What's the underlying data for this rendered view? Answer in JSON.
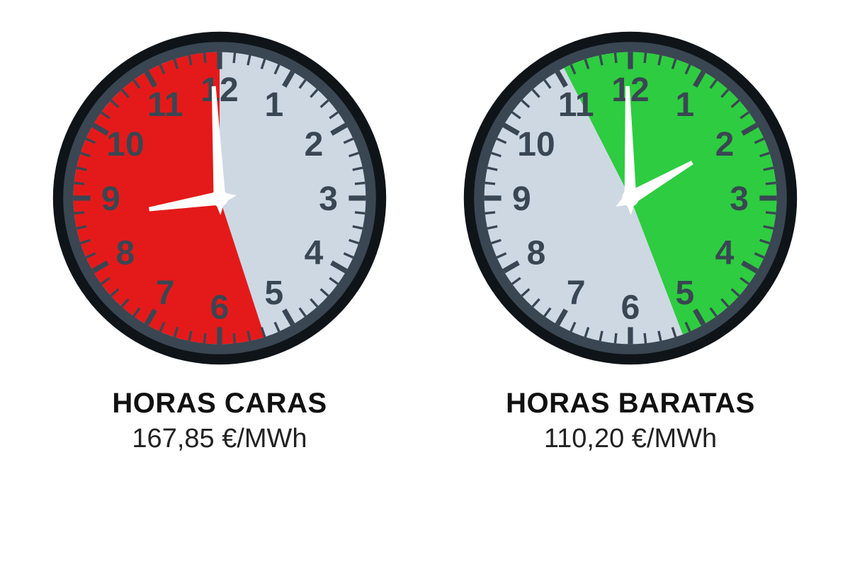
{
  "background_color": "#ffffff",
  "clocks": [
    {
      "id": "expensive",
      "title": "HORAS CARAS",
      "price": "167,85 €/MWh",
      "face_color": "#cdd8e3",
      "sector_color": "#e41a1a",
      "sector_start_hour": 5.4,
      "sector_end_hour": 12,
      "rim_outer_color": "#0f1419",
      "rim_inner_color": "#3a4652",
      "numeral_color": "#3a4652",
      "tick_color": "#3a4652",
      "hand_color": "#ffffff",
      "hour_hand_at": 8.7,
      "minute_hand_at": 11.9,
      "numeral_fontsize": 44,
      "numeral_fontweight": 600
    },
    {
      "id": "cheap",
      "title": "HORAS BARATAS",
      "price": "110,20 €/MWh",
      "face_color": "#cdd8e3",
      "sector_color": "#2ecc40",
      "sector_start_hour": 11.1,
      "sector_end_hour": 17.3,
      "rim_outer_color": "#0f1419",
      "rim_inner_color": "#3a4652",
      "numeral_color": "#3a4652",
      "tick_color": "#3a4652",
      "hand_color": "#ffffff",
      "hour_hand_at": 2,
      "minute_hand_at": 11.95,
      "numeral_fontsize": 44,
      "numeral_fontweight": 600
    }
  ],
  "caption_title_fontsize": 40,
  "caption_title_color": "#111111",
  "caption_price_fontsize": 38,
  "caption_price_color": "#222222"
}
